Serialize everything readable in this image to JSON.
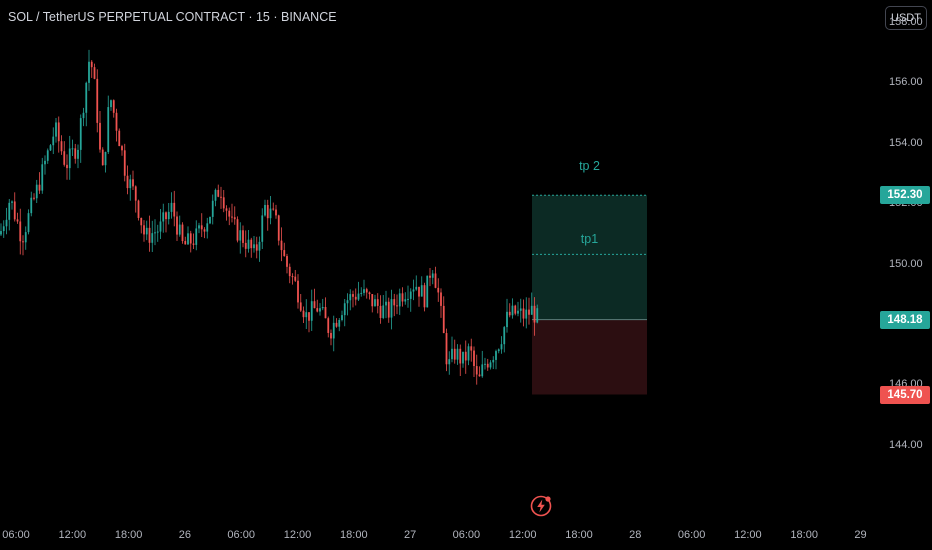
{
  "header": {
    "title": "SOL / TetherUS PERPETUAL CONTRACT · 15 · BINANCE",
    "currency_button": "USDT"
  },
  "colors": {
    "up": "#26a69a",
    "down": "#ef5350",
    "target_zone": "#0c2a24",
    "stop_zone": "#2c0e11",
    "background": "#000000"
  },
  "icons": {
    "bottom": "lightning-bolt-icon"
  },
  "chart_data": {
    "type": "candlestick",
    "title": "SOL / TetherUS PERPETUAL CONTRACT · 15 · BINANCE",
    "ylim": [
      143.2,
      158.5
    ],
    "y_ticks": [
      "158.00",
      "156.00",
      "154.00",
      "152.00",
      "150.00",
      "148.00",
      "146.00",
      "144.00"
    ],
    "x_ticks": [
      "06:00",
      "12:00",
      "18:00",
      "26",
      "06:00",
      "12:00",
      "18:00",
      "27",
      "06:00",
      "12:00",
      "18:00",
      "28",
      "06:00",
      "12:00",
      "18:00",
      "29"
    ],
    "price_labels": {
      "target": "152.30",
      "current": "148.18",
      "stop": "145.70"
    },
    "annotations": {
      "tp2_label": "tp 2",
      "tp1_label": "tp1",
      "tp1_level": 150.34,
      "tp2_level": 152.3,
      "entry_level": 148.18,
      "stop_level": 145.7
    },
    "price_path": [
      [
        0,
        151.0
      ],
      [
        10,
        152.2
      ],
      [
        22,
        150.9
      ],
      [
        40,
        152.8
      ],
      [
        55,
        154.5
      ],
      [
        66,
        153.3
      ],
      [
        78,
        154.0
      ],
      [
        90,
        157.0
      ],
      [
        96,
        155.5
      ],
      [
        102,
        152.8
      ],
      [
        110,
        155.6
      ],
      [
        118,
        154.4
      ],
      [
        126,
        153.0
      ],
      [
        136,
        152.2
      ],
      [
        145,
        150.9
      ],
      [
        160,
        151.2
      ],
      [
        172,
        151.9
      ],
      [
        183,
        150.6
      ],
      [
        196,
        150.9
      ],
      [
        210,
        151.7
      ],
      [
        220,
        152.6
      ],
      [
        232,
        151.3
      ],
      [
        245,
        150.8
      ],
      [
        255,
        150.3
      ],
      [
        265,
        151.9
      ],
      [
        275,
        151.5
      ],
      [
        285,
        150.1
      ],
      [
        296,
        149.3
      ],
      [
        306,
        148.3
      ],
      [
        318,
        148.6
      ],
      [
        330,
        147.8
      ],
      [
        345,
        148.8
      ],
      [
        360,
        149.1
      ],
      [
        375,
        148.7
      ],
      [
        388,
        148.4
      ],
      [
        400,
        149.0
      ],
      [
        415,
        149.4
      ],
      [
        425,
        148.9
      ],
      [
        432,
        150.1
      ],
      [
        438,
        149.1
      ],
      [
        443,
        147.8
      ],
      [
        448,
        146.6
      ],
      [
        455,
        147.1
      ],
      [
        463,
        146.8
      ],
      [
        470,
        147.2
      ],
      [
        478,
        146.0
      ],
      [
        484,
        146.7
      ],
      [
        492,
        147.0
      ],
      [
        500,
        147.5
      ],
      [
        508,
        148.3
      ],
      [
        516,
        148.4
      ],
      [
        525,
        148.3
      ],
      [
        532,
        148.5
      ],
      [
        538,
        148.18
      ]
    ]
  }
}
